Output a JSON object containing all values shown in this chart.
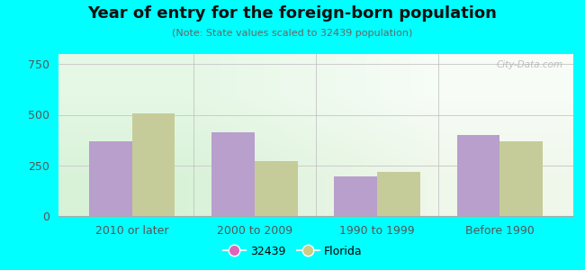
{
  "title": "Year of entry for the foreign-born population",
  "subtitle": "(Note: State values scaled to 32439 population)",
  "categories": [
    "2010 or later",
    "2000 to 2009",
    "1990 to 1999",
    "Before 1990"
  ],
  "values_32439": [
    370,
    415,
    195,
    400
  ],
  "values_florida": [
    505,
    270,
    220,
    368
  ],
  "bar_color_32439": "#b89fcc",
  "bar_color_florida": "#c5cc99",
  "legend_color_32439": "#dd66bb",
  "legend_color_florida": "#cccc88",
  "background_outer": "#00ffff",
  "ylim": [
    0,
    800
  ],
  "yticks": [
    0,
    250,
    500,
    750
  ],
  "bar_width": 0.35,
  "watermark": "City-Data.com",
  "legend_label_32439": "32439",
  "legend_label_florida": "Florida",
  "title_fontsize": 13,
  "subtitle_fontsize": 8,
  "tick_fontsize": 9,
  "legend_fontsize": 9
}
